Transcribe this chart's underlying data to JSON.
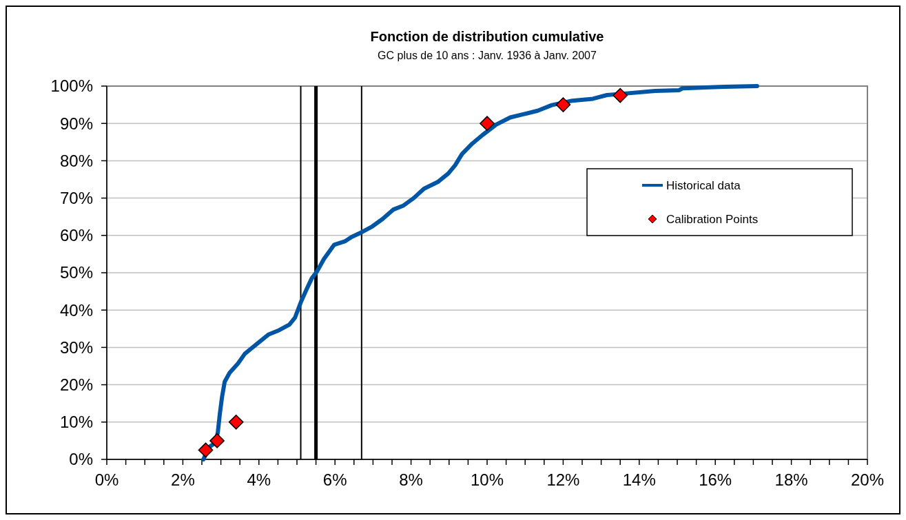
{
  "chart_data": {
    "type": "line",
    "title": "Fonction de distribution cumulative",
    "subtitle": "GC plus de 10 ans : Janv. 1936 à Janv. 2007",
    "xlim": [
      0,
      20
    ],
    "xticks": [
      {
        "value": 0,
        "label": "0%"
      },
      {
        "value": 0.5,
        "label": null
      },
      {
        "value": 1,
        "label": null
      },
      {
        "value": 1.5,
        "label": null
      },
      {
        "value": 2,
        "label": "2%"
      },
      {
        "value": 2.5,
        "label": null
      },
      {
        "value": 3,
        "label": null
      },
      {
        "value": 3.5,
        "label": null
      },
      {
        "value": 4,
        "label": "4%"
      },
      {
        "value": 4.5,
        "label": null
      },
      {
        "value": 5,
        "label": null
      },
      {
        "value": 5.5,
        "label": null
      },
      {
        "value": 6,
        "label": "6%"
      },
      {
        "value": 6.5,
        "label": null
      },
      {
        "value": 7,
        "label": null
      },
      {
        "value": 7.5,
        "label": null
      },
      {
        "value": 8,
        "label": "8%"
      },
      {
        "value": 8.5,
        "label": null
      },
      {
        "value": 9,
        "label": null
      },
      {
        "value": 9.5,
        "label": null
      },
      {
        "value": 10,
        "label": "10%"
      },
      {
        "value": 10.5,
        "label": null
      },
      {
        "value": 11,
        "label": null
      },
      {
        "value": 11.5,
        "label": null
      },
      {
        "value": 12,
        "label": "12%"
      },
      {
        "value": 12.5,
        "label": null
      },
      {
        "value": 13,
        "label": null
      },
      {
        "value": 13.5,
        "label": null
      },
      {
        "value": 14,
        "label": "14%"
      },
      {
        "value": 14.5,
        "label": null
      },
      {
        "value": 15,
        "label": null
      },
      {
        "value": 15.5,
        "label": null
      },
      {
        "value": 16,
        "label": "16%"
      },
      {
        "value": 16.5,
        "label": null
      },
      {
        "value": 17,
        "label": null
      },
      {
        "value": 17.5,
        "label": null
      },
      {
        "value": 18,
        "label": "18%"
      },
      {
        "value": 18.5,
        "label": null
      },
      {
        "value": 19,
        "label": null
      },
      {
        "value": 19.5,
        "label": null
      },
      {
        "value": 20,
        "label": "20%"
      }
    ],
    "ylim": [
      0,
      100
    ],
    "yticks": [
      {
        "value": 0,
        "label": "0%"
      },
      {
        "value": 10,
        "label": "10%"
      },
      {
        "value": 20,
        "label": "20%"
      },
      {
        "value": 30,
        "label": "30%"
      },
      {
        "value": 40,
        "label": "40%"
      },
      {
        "value": 50,
        "label": "50%"
      },
      {
        "value": 60,
        "label": "60%"
      },
      {
        "value": 70,
        "label": "70%"
      },
      {
        "value": 80,
        "label": "80%"
      },
      {
        "value": 90,
        "label": "90%"
      },
      {
        "value": 100,
        "label": "100%"
      }
    ],
    "grid": "y",
    "legend": "top right",
    "series": [
      {
        "name": "Historical data",
        "color": "#0055a5",
        "marker": "none",
        "line_style": "solid",
        "x": [
          2.54,
          2.63,
          2.72,
          2.86,
          2.92,
          2.97,
          3.03,
          3.1,
          3.23,
          3.45,
          3.63,
          3.99,
          4.26,
          4.53,
          4.8,
          4.95,
          5.11,
          5.26,
          5.39,
          5.53,
          5.71,
          5.98,
          6.26,
          6.44,
          6.71,
          6.98,
          7.25,
          7.53,
          7.8,
          8.07,
          8.34,
          8.7,
          8.98,
          9.16,
          9.34,
          9.61,
          9.88,
          10.24,
          10.61,
          10.97,
          11.33,
          11.7,
          12.24,
          12.78,
          13.15,
          13.51,
          14.42,
          15.05,
          15.14,
          16.23,
          17.1
        ],
        "values": [
          0,
          2,
          3.5,
          4.5,
          7.3,
          12,
          16.7,
          20.8,
          23.2,
          25.7,
          28.3,
          31.3,
          33.5,
          34.6,
          36.1,
          38,
          42.3,
          45.7,
          48.5,
          50.4,
          53.7,
          57.5,
          58.4,
          59.6,
          60.9,
          62.4,
          64.4,
          66.9,
          68,
          70,
          72.5,
          74.3,
          76.6,
          78.8,
          81.8,
          84.6,
          86.9,
          89.7,
          91.6,
          92.5,
          93.4,
          94.9,
          96.1,
          96.6,
          97.6,
          97.9,
          98.7,
          98.9,
          99.4,
          99.8,
          100
        ]
      },
      {
        "name": "Calibration Points",
        "type": "scatter",
        "color": "#ff0000",
        "marker": "diamond",
        "x": [
          2.6,
          2.9,
          3.4,
          10,
          12,
          13.5
        ],
        "values": [
          2.5,
          5,
          10,
          90,
          95,
          97.5
        ]
      }
    ],
    "ref_lines": [
      {
        "axis": "x",
        "value": 5.1,
        "color": "#000000"
      },
      {
        "axis": "x",
        "value": 5.5,
        "color": "#000000"
      },
      {
        "axis": "x",
        "value": 6.7,
        "color": "#000000"
      }
    ]
  }
}
